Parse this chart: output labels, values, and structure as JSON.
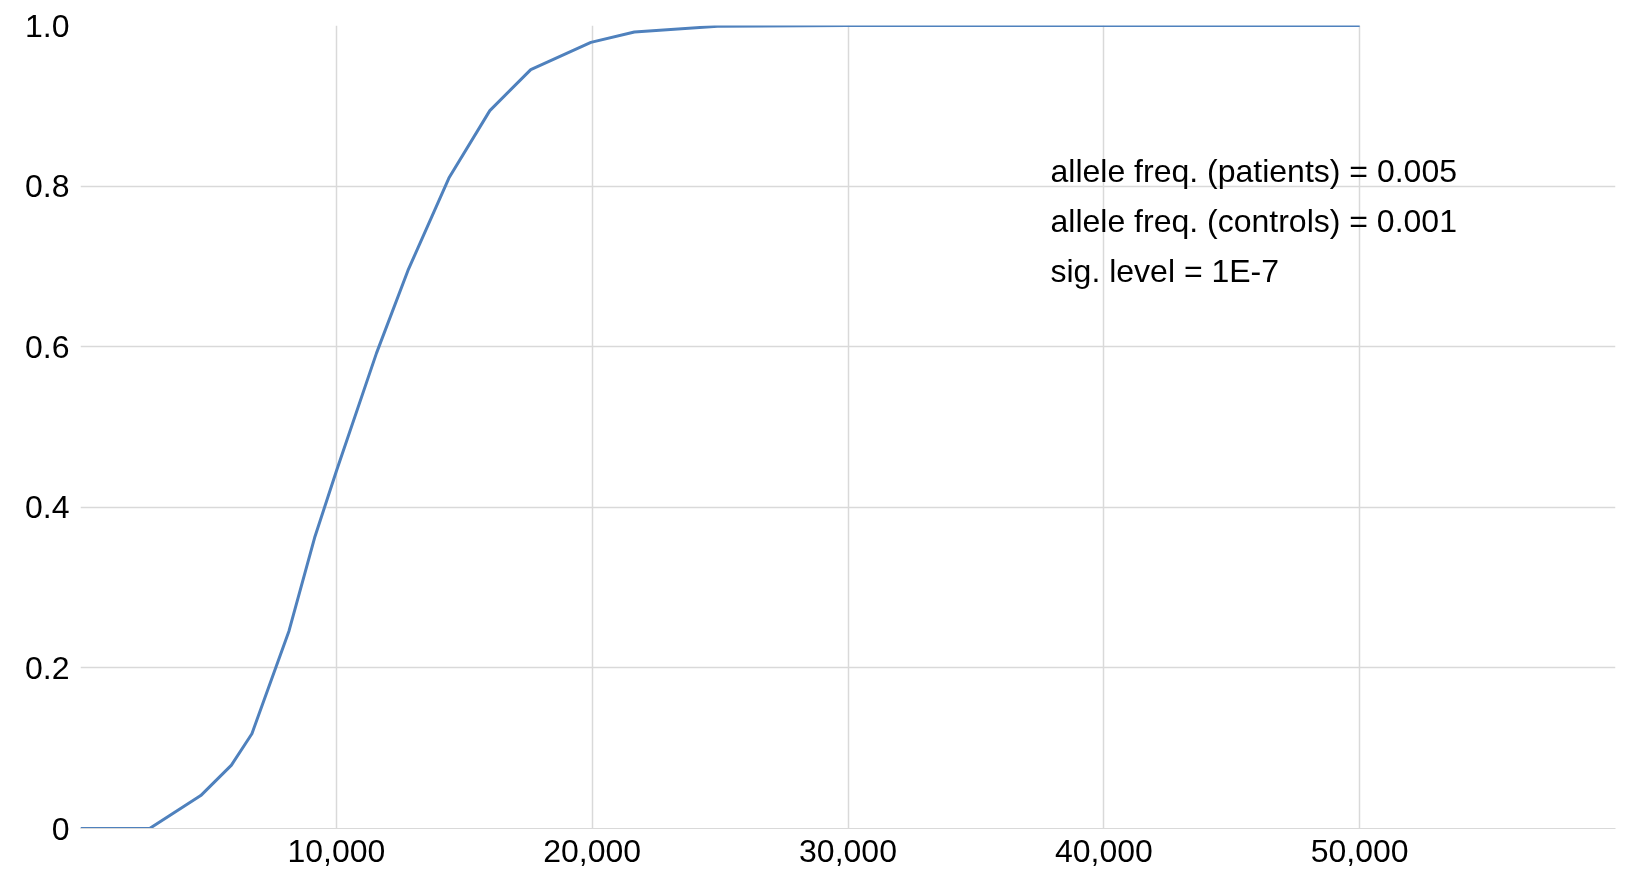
{
  "chart_data": {
    "type": "line",
    "x": [
      0,
      1500,
      2700,
      4700,
      5900,
      6700,
      8150,
      9150,
      10000,
      11570,
      12800,
      14400,
      16000,
      17600,
      19950,
      21650,
      24900,
      30000,
      37000,
      50000
    ],
    "series": [
      {
        "color": "#4f81bd",
        "values": [
          0,
          0,
          0,
          0.041,
          0.079,
          0.118,
          0.246,
          0.362,
          0.445,
          0.592,
          0.695,
          0.81,
          0.894,
          0.945,
          0.979,
          0.992,
          0.999,
          1.0,
          1.0,
          1.0
        ]
      }
    ],
    "xlim": [
      0,
      60000
    ],
    "xticks": [
      {
        "value": 10000,
        "label": "10,000"
      },
      {
        "value": 20000,
        "label": "20,000"
      },
      {
        "value": 30000,
        "label": "30,000"
      },
      {
        "value": 40000,
        "label": "40,000"
      },
      {
        "value": 50000,
        "label": "50,000"
      }
    ],
    "ylim": [
      0,
      1
    ],
    "yticks": [
      0,
      0.2,
      0.4,
      0.6,
      0.8,
      {
        "value": 1,
        "label": "1.0"
      }
    ],
    "annotations": [
      "allele freq. (patients) = 0.005",
      "allele freq. (controls) = 0.001",
      "sig. level = 1E-7"
    ],
    "grid": true,
    "marker": "none",
    "line_style": "solid"
  }
}
